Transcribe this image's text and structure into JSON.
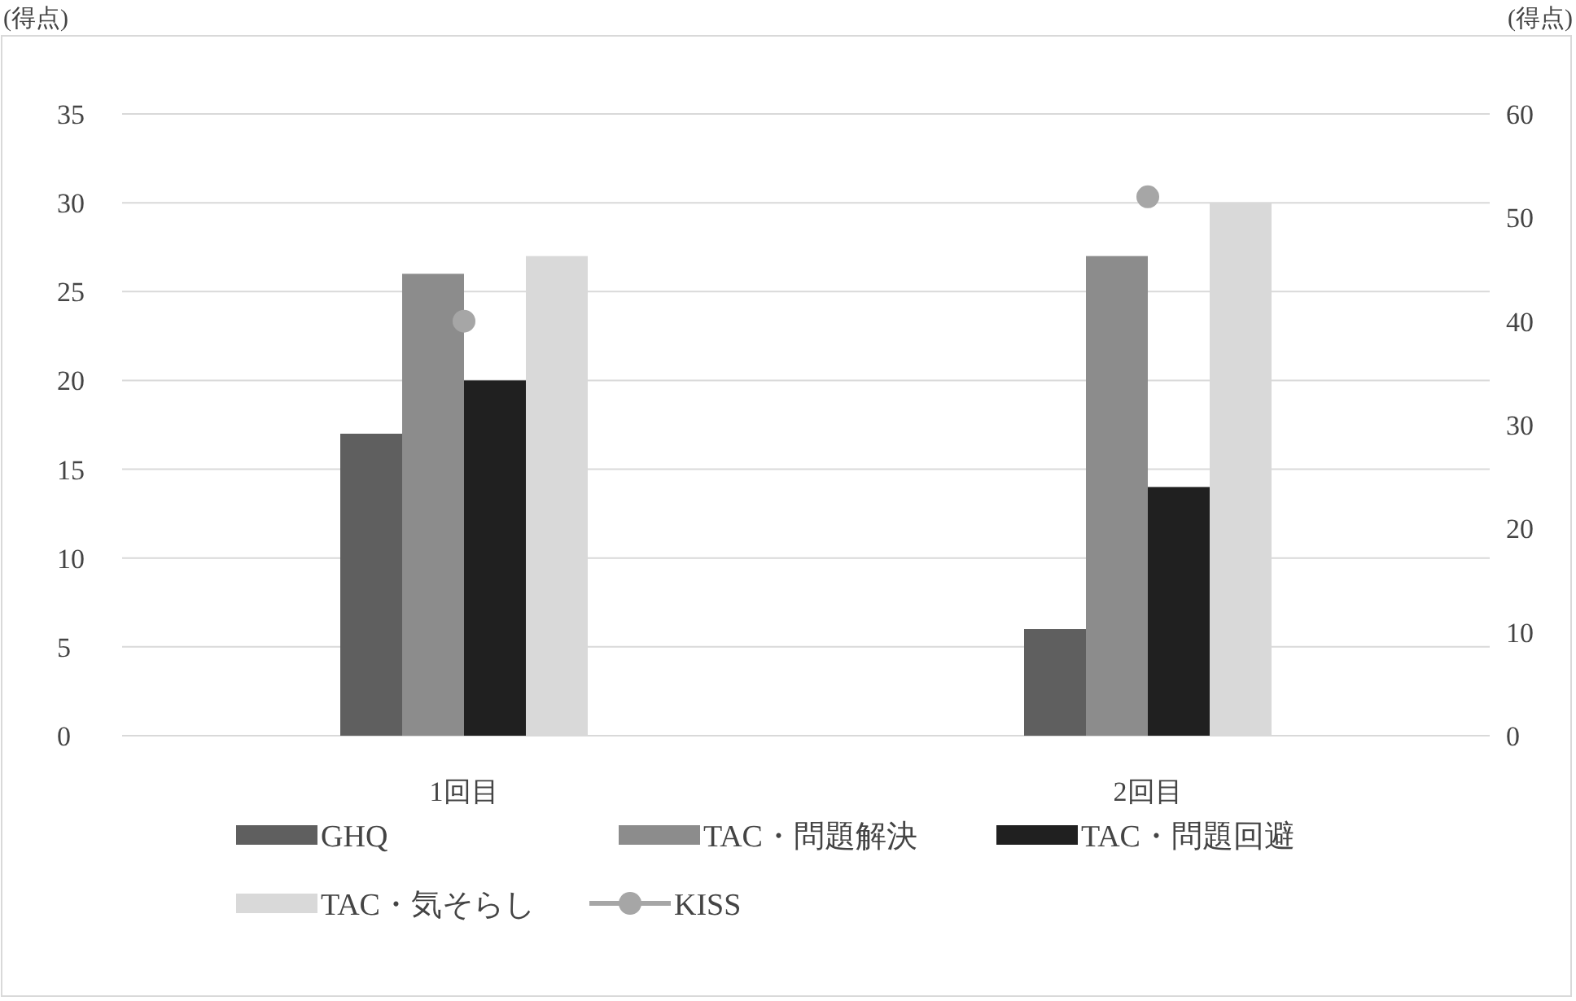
{
  "chart_data": {
    "type": "bar",
    "ylabel": "(得点)",
    "y2label": "(得点)",
    "categories": [
      "1回目",
      "2回目"
    ],
    "series": [
      {
        "name": "GHQ",
        "color": "#5f5f5f",
        "values": [
          17,
          6
        ]
      },
      {
        "name": "TAC・問題解決",
        "color": "#8c8c8c",
        "values": [
          26,
          27
        ]
      },
      {
        "name": "TAC・問題回避",
        "color": "#202020",
        "values": [
          20,
          14
        ]
      },
      {
        "name": "TAC・気そらし",
        "color": "#d9d9d9",
        "values": [
          27,
          30
        ]
      },
      {
        "name": "KISS",
        "type": "scatter",
        "axis": "y2",
        "color": "#a6a6a6",
        "values": [
          40,
          52
        ]
      }
    ],
    "ylim": [
      0,
      35
    ],
    "yticks": [
      0,
      5,
      10,
      15,
      20,
      25,
      30,
      35
    ],
    "y2lim": [
      0,
      60
    ],
    "y2ticks": [
      0,
      10,
      20,
      30,
      40,
      50,
      60
    ],
    "grid": "y",
    "legend": "bottom",
    "marker": "circle"
  }
}
